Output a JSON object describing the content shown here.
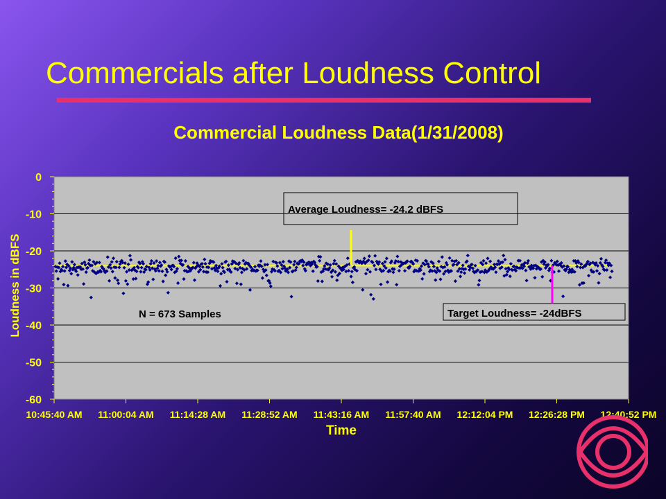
{
  "slide": {
    "title": "Commercials after Loudness Control",
    "underline_color": "#e8306a",
    "title_color": "#ffff00"
  },
  "chart_data": {
    "type": "scatter",
    "title": "Commercial Loudness Data(1/31/2008)",
    "xlabel": "Time",
    "ylabel": "Loudness in dBFS",
    "ylim": [
      -60,
      0
    ],
    "yticks": [
      "0",
      "-10",
      "-20",
      "-30",
      "-40",
      "-50",
      "-60"
    ],
    "xticks": [
      "10:45:40 AM",
      "11:00:04 AM",
      "11:14:28 AM",
      "11:28:52 AM",
      "11:43:16 AM",
      "11:57:40 AM",
      "12:12:04 PM",
      "12:26:28 PM",
      "12:40:52 PM"
    ],
    "xlim": [
      "10:45:40 AM",
      "12:40:52 PM"
    ],
    "grid": true,
    "series": [
      {
        "color": "#000080",
        "marker": "diamond",
        "sample_count": 673,
        "mean": -24.2
      }
    ],
    "reference_lines": [
      {
        "label": "Target Loudness",
        "value": -24,
        "color": "#ffff00"
      }
    ],
    "annotations": {
      "average": "Average Loudness= -24.2 dBFS",
      "target": "Target Loudness= -24dBFS",
      "samples": "N = 673 Samples",
      "average_arrow_color": "#ffff00",
      "target_arrow_color": "#ff00ff"
    }
  }
}
